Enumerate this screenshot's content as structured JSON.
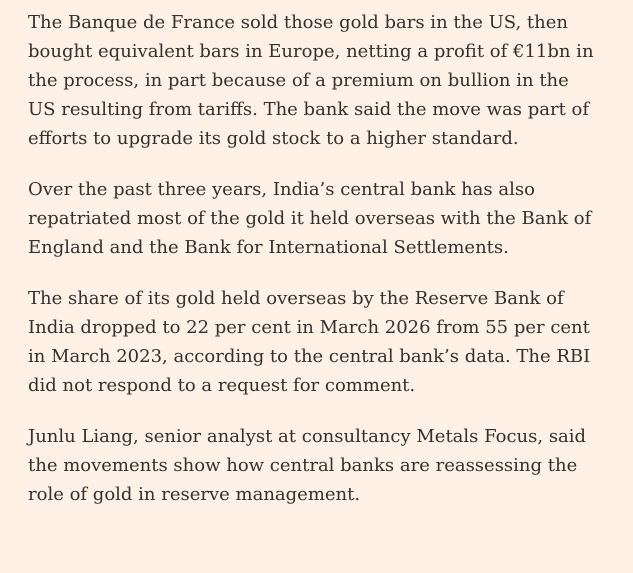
{
  "article": {
    "paragraphs": [
      {
        "lines": [
          "The Banque de France sold those gold bars in the US, then",
          "bought equivalent bars in Europe, netting a profit of €11bn in",
          "the process, in part because of a premium on bullion in the",
          "US resulting from tariffs. The bank said the move was part of",
          "efforts to upgrade its gold stock to a higher standard."
        ]
      },
      {
        "lines": [
          "Over the past three years, India’s central bank has also",
          "repatriated most of the gold it held overseas with the Bank of",
          "England and the Bank for International Settlements."
        ]
      },
      {
        "lines": [
          "The share of its gold held overseas by the Reserve Bank of",
          "India dropped to 22 per cent in March 2026 from 55 per cent",
          "in March 2023, according to the central bank’s data. The RBI",
          "did not respond to a request for comment."
        ]
      },
      {
        "lines": [
          "Junlu Liang, senior analyst at consultancy Metals Focus, said",
          "the movements show how central banks are reassessing the",
          "role of gold in reserve management."
        ]
      }
    ]
  }
}
